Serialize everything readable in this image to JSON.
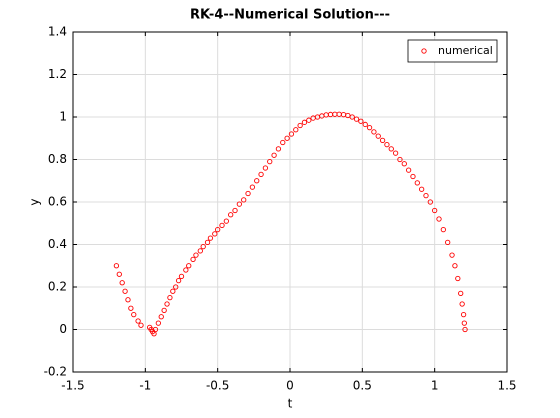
{
  "chart_data": {
    "type": "scatter",
    "title": "RK-4--Numerical Solution---",
    "xlabel": "t",
    "ylabel": "y",
    "xlim": [
      -1.5,
      1.5
    ],
    "xticks": [
      -1.5,
      -1,
      -0.5,
      0,
      0.5,
      1,
      1.5
    ],
    "ylim": [
      -0.2,
      1.4
    ],
    "yticks": [
      -0.2,
      0,
      0.2,
      0.4,
      0.6,
      0.8,
      1,
      1.2,
      1.4
    ],
    "grid": true,
    "legend": "upper right",
    "series": [
      {
        "name": "numerical",
        "color": "#ff0000",
        "x": [
          -1.2,
          -1.18,
          -1.16,
          -1.14,
          -1.12,
          -1.1,
          -1.08,
          -1.05,
          -1.03,
          -0.97,
          -0.96,
          -0.95,
          -0.94,
          -0.93,
          -0.91,
          -0.89,
          -0.87,
          -0.85,
          -0.83,
          -0.81,
          -0.79,
          -0.77,
          -0.75,
          -0.72,
          -0.7,
          -0.67,
          -0.65,
          -0.62,
          -0.6,
          -0.57,
          -0.55,
          -0.52,
          -0.5,
          -0.47,
          -0.44,
          -0.41,
          -0.38,
          -0.35,
          -0.32,
          -0.29,
          -0.26,
          -0.23,
          -0.2,
          -0.17,
          -0.14,
          -0.11,
          -0.08,
          -0.05,
          -0.02,
          0.01,
          0.04,
          0.07,
          0.1,
          0.13,
          0.16,
          0.19,
          0.22,
          0.25,
          0.28,
          0.31,
          0.34,
          0.37,
          0.4,
          0.43,
          0.46,
          0.49,
          0.52,
          0.55,
          0.58,
          0.61,
          0.64,
          0.67,
          0.7,
          0.73,
          0.76,
          0.79,
          0.82,
          0.85,
          0.88,
          0.91,
          0.94,
          0.97,
          1.0,
          1.03,
          1.06,
          1.09,
          1.12,
          1.14,
          1.16,
          1.18,
          1.19,
          1.2,
          1.205,
          1.21
        ],
        "values": [
          0.3,
          0.26,
          0.22,
          0.18,
          0.14,
          0.1,
          0.07,
          0.04,
          0.02,
          0.01,
          0.0,
          -0.01,
          -0.02,
          0.0,
          0.03,
          0.06,
          0.09,
          0.12,
          0.15,
          0.18,
          0.2,
          0.23,
          0.25,
          0.28,
          0.3,
          0.33,
          0.35,
          0.37,
          0.39,
          0.41,
          0.43,
          0.45,
          0.47,
          0.49,
          0.51,
          0.54,
          0.56,
          0.59,
          0.61,
          0.64,
          0.67,
          0.7,
          0.73,
          0.76,
          0.79,
          0.82,
          0.85,
          0.88,
          0.9,
          0.92,
          0.94,
          0.96,
          0.975,
          0.985,
          0.995,
          1.0,
          1.005,
          1.01,
          1.012,
          1.013,
          1.013,
          1.011,
          1.007,
          1.0,
          0.99,
          0.98,
          0.965,
          0.95,
          0.93,
          0.91,
          0.89,
          0.87,
          0.85,
          0.83,
          0.8,
          0.78,
          0.75,
          0.72,
          0.69,
          0.66,
          0.63,
          0.6,
          0.56,
          0.52,
          0.47,
          0.41,
          0.35,
          0.3,
          0.24,
          0.17,
          0.12,
          0.07,
          0.03,
          0.0
        ]
      }
    ]
  }
}
